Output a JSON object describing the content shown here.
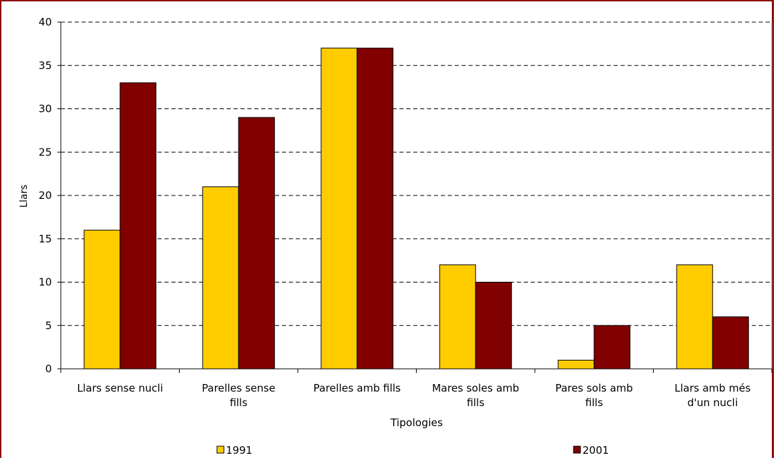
{
  "chart_data": {
    "type": "bar",
    "xlabel": "Tipologies",
    "ylabel": "Llars",
    "ylim": [
      0,
      40
    ],
    "yticks": [
      0,
      5,
      10,
      15,
      20,
      25,
      30,
      35,
      40
    ],
    "grid": "horizontal dashed",
    "legend_position": "bottom",
    "categories": [
      [
        "Llars sense nucli"
      ],
      [
        "Parelles sense",
        "fills"
      ],
      [
        "Parelles amb fills"
      ],
      [
        "Mares soles amb",
        "fills"
      ],
      [
        "Pares sols amb",
        "fills"
      ],
      [
        "Llars amb més",
        "d'un nucli"
      ]
    ],
    "series": [
      {
        "name": "1991",
        "color": "#ffcc00",
        "values": [
          16,
          21,
          37,
          12,
          1,
          12
        ]
      },
      {
        "name": "2001",
        "color": "#800000",
        "values": [
          33,
          29,
          37,
          10,
          5,
          6
        ]
      }
    ]
  },
  "colors": {
    "border": "#8b0a0a",
    "grid": "#000000"
  }
}
